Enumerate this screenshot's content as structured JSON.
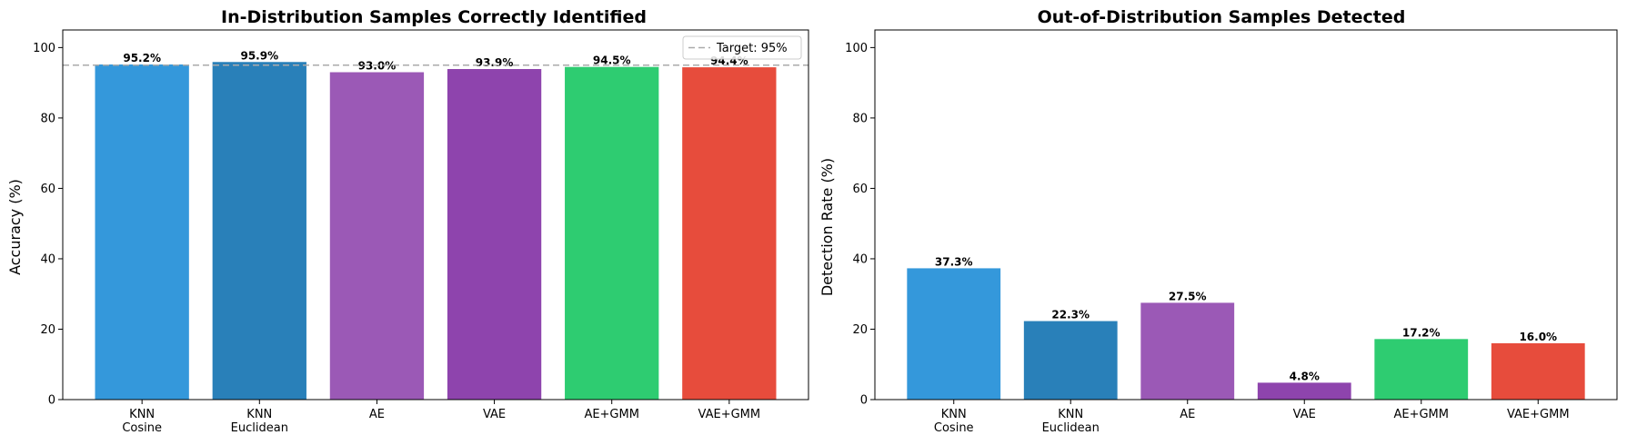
{
  "chart_data": [
    {
      "type": "bar",
      "title": "In-Distribution Samples Correctly Identified",
      "ylabel": "Accuracy (%)",
      "xlabel": "",
      "ylim": [
        0,
        105
      ],
      "yticks": [
        0,
        20,
        40,
        60,
        80,
        100
      ],
      "categories": [
        [
          "KNN",
          "Cosine"
        ],
        [
          "KNN",
          "Euclidean"
        ],
        [
          "AE"
        ],
        [
          "VAE"
        ],
        [
          "AE+GMM"
        ],
        [
          "VAE+GMM"
        ]
      ],
      "values": [
        95.2,
        95.9,
        93.0,
        93.9,
        94.5,
        94.4
      ],
      "value_labels": [
        "95.2%",
        "95.9%",
        "93.0%",
        "93.9%",
        "94.5%",
        "94.4%"
      ],
      "colors": [
        "#3498db",
        "#2980b9",
        "#9b59b6",
        "#8e44ad",
        "#2ecc71",
        "#e74c3c"
      ],
      "reference_line": {
        "value": 95,
        "label": "Target: 95%",
        "color": "#aaaaaa",
        "style": "dashed"
      },
      "legend": {
        "placement": "top-right",
        "entries": [
          "Target: 95%"
        ]
      },
      "grid": false
    },
    {
      "type": "bar",
      "title": "Out-of-Distribution Samples Detected",
      "ylabel": "Detection Rate (%)",
      "xlabel": "",
      "ylim": [
        0,
        105
      ],
      "yticks": [
        0,
        20,
        40,
        60,
        80,
        100
      ],
      "categories": [
        [
          "KNN",
          "Cosine"
        ],
        [
          "KNN",
          "Euclidean"
        ],
        [
          "AE"
        ],
        [
          "VAE"
        ],
        [
          "AE+GMM"
        ],
        [
          "VAE+GMM"
        ]
      ],
      "values": [
        37.3,
        22.3,
        27.5,
        4.8,
        17.2,
        16.0
      ],
      "value_labels": [
        "37.3%",
        "22.3%",
        "27.5%",
        "4.8%",
        "17.2%",
        "16.0%"
      ],
      "colors": [
        "#3498db",
        "#2980b9",
        "#9b59b6",
        "#8e44ad",
        "#2ecc71",
        "#e74c3c"
      ],
      "grid": false
    }
  ]
}
